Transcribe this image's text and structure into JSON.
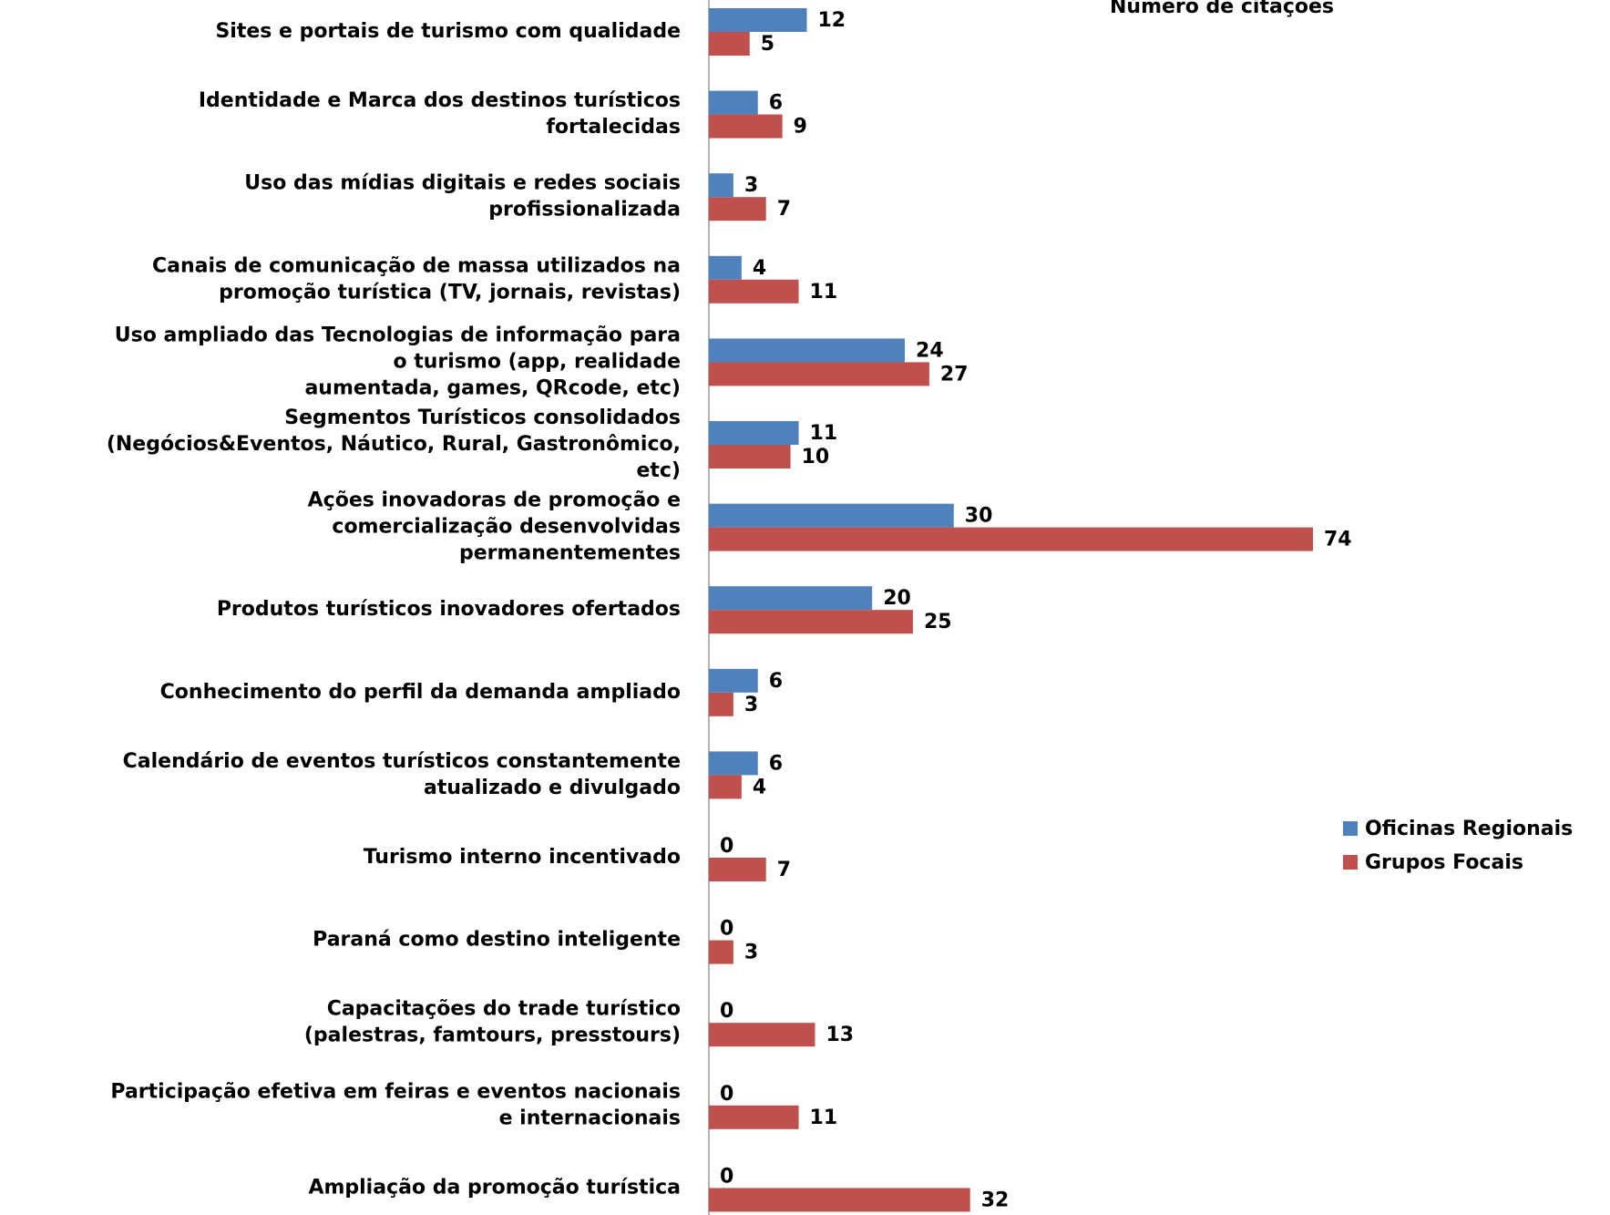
{
  "chart_data": {
    "type": "bar",
    "orientation": "horizontal",
    "title": "Número de citações",
    "categories": [
      "Sites e portais de turismo com qualidade",
      "Identidade e Marca dos destinos turísticos\nfortalecidas",
      "Uso das mídias digitais e redes sociais\nprofissionalizada",
      "Canais de comunicação de massa utilizados na\npromoção turística (TV, jornais, revistas)",
      "Uso ampliado das Tecnologias de informação para\no turismo (app, realidade\naumentada, games, QRcode, etc)",
      "Segmentos Turísticos consolidados\n(Negócios&Eventos, Náutico, Rural, Gastronômico,\netc)",
      "Ações inovadoras de promoção e\ncomercialização desenvolvidas\npermanentementes",
      "Produtos turísticos inovadores ofertados",
      "Conhecimento do perfil da demanda ampliado",
      "Calendário de eventos turísticos constantemente\natualizado e divulgado",
      "Turismo interno incentivado",
      "Paraná como destino inteligente",
      "Capacitações do trade turístico\n(palestras, famtours, presstours)",
      "Participação efetiva em feiras e eventos nacionais\ne internacionais",
      "Ampliação da promoção turística"
    ],
    "series": [
      {
        "name": "Oficinas Regionais",
        "color": "#4f81bd",
        "values": [
          12,
          6,
          3,
          4,
          24,
          11,
          30,
          20,
          6,
          6,
          0,
          0,
          0,
          0,
          0
        ]
      },
      {
        "name": "Grupos Focais",
        "color": "#c0504d",
        "values": [
          5,
          9,
          7,
          11,
          27,
          10,
          74,
          25,
          3,
          4,
          7,
          3,
          13,
          11,
          32
        ]
      }
    ],
    "legend": "right"
  }
}
